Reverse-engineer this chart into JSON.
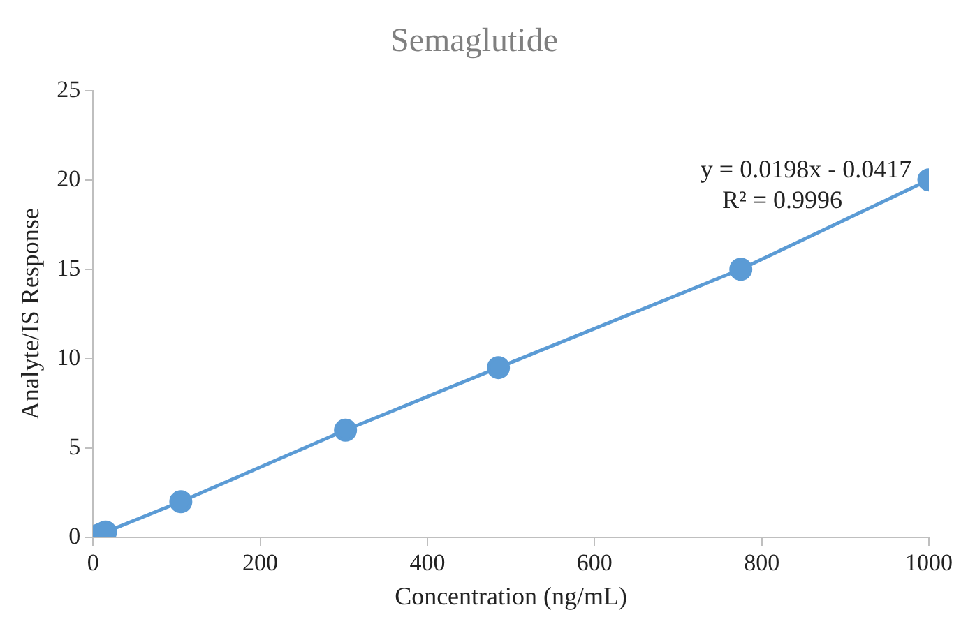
{
  "chart_data": {
    "type": "line",
    "title": "Semaglutide",
    "xlabel": "Concentration (ng/mL)",
    "ylabel": "Analyte/IS Response",
    "x": [
      0,
      5,
      10,
      15,
      105,
      302,
      485,
      775,
      1000
    ],
    "series": [
      {
        "color": "#5b9bd5",
        "values": [
          0,
          0.1,
          0.2,
          0.3,
          2,
          6,
          9.5,
          15,
          20
        ]
      }
    ],
    "xlim": [
      0,
      1000
    ],
    "xticks": [
      0,
      200,
      400,
      600,
      800,
      1000
    ],
    "ylim": [
      0,
      25
    ],
    "yticks": [
      0,
      5,
      10,
      15,
      20,
      25
    ],
    "annotations": [
      "y = 0.0198x - 0.0417",
      "R² = 0.9996"
    ],
    "marker": "circle",
    "line_style": "solid",
    "grid": false,
    "legend": false
  }
}
